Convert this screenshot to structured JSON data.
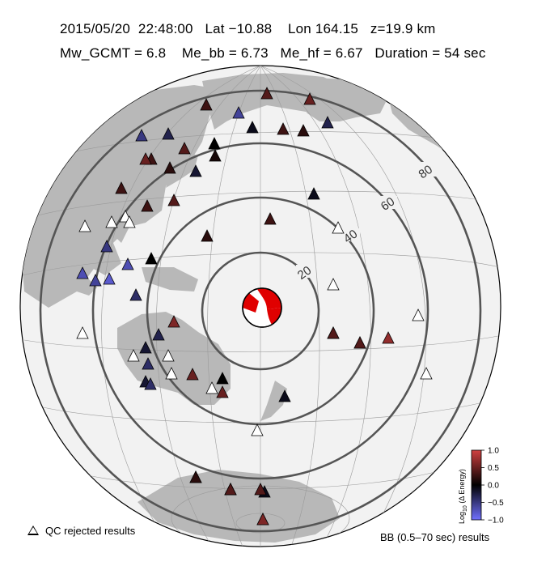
{
  "header": {
    "line1": "2015/05/20  22:48:00   Lat −10.88    Lon 164.15   z=19.9 km",
    "line2": "Mw_GCMT = 6.8    Me_bb = 6.73   Me_hf = 6.67   Duration = 54 sec"
  },
  "map": {
    "projection": "azimuthal-equidistant",
    "center": {
      "lat": -10.88,
      "lon": 164.15
    },
    "ring_distance_labels": [
      "20",
      "40",
      "60",
      "80"
    ],
    "colors": {
      "ocean": "#f2f2f2",
      "land": "#b8b8b8",
      "rings": "#555555",
      "graticule": "#9a9a9a"
    }
  },
  "beachball": {
    "colors": {
      "compressional": "#e00000",
      "dilatational": "#ffffff"
    }
  },
  "colorbar": {
    "title": "Log10 (Δ Energy)",
    "title_main": "Log",
    "title_sub": "10",
    "title_rest": " (Δ Energy)",
    "ticks": [
      "1.0",
      "0.5",
      "0.0",
      "−0.5",
      "−1.0"
    ],
    "tick_values": [
      1.0,
      0.5,
      0.0,
      -0.5,
      -1.0
    ],
    "range": [
      -1.0,
      1.0
    ],
    "colors": {
      "high": "#d04040",
      "mid": "#000000",
      "low": "#7070ff"
    }
  },
  "legend": {
    "qc_rejected": "QC rejected results",
    "bb_results": "BB (0.5–70 sec) results"
  },
  "stations": [
    {
      "value": 0.3
    },
    {
      "value": 0.4
    },
    {
      "value": 0.5
    },
    {
      "value": -0.5
    },
    {
      "value": 0.0
    },
    {
      "value": 0.4
    },
    {
      "value": 0.3
    },
    {
      "value": 0.2
    },
    {
      "value": -0.3
    },
    {
      "value": 0.3
    },
    {
      "value": 0.2
    },
    {
      "value": -0.2
    },
    {
      "value": 0.3
    },
    {
      "value": 0.4
    },
    {
      "value": 0.3
    },
    {
      "value": 0.2
    },
    {
      "value": -0.1
    },
    {
      "value": 0.3
    },
    {
      "value": 0.1
    },
    {
      "value": 0.5
    },
    {
      "value": 0.5
    },
    {
      "value": 0.0
    },
    {
      "value": -0.1
    },
    {
      "value": 0.5
    },
    {
      "value": -0.3
    },
    {
      "value": -0.1
    },
    {
      "value": -0.6
    },
    {
      "value": -0.5
    },
    {
      "value": -0.7
    },
    {
      "value": -0.6
    },
    {
      "value": -0.8
    },
    {
      "value": -0.7
    },
    {
      "value": -0.4
    },
    {
      "value": 0.0
    },
    {
      "value": 0.6
    },
    {
      "value": -0.3
    },
    {
      "value": -0.2
    },
    {
      "value": -0.4
    },
    {
      "value": -0.2
    },
    {
      "value": -0.4
    },
    {
      "value": 0.3
    },
    {
      "value": 0.4
    },
    {
      "value": 0.3
    },
    {
      "value": 0.3
    },
    {
      "value": -0.2
    },
    {
      "value": -0.1
    },
    {
      "value": 0.4
    },
    {
      "value": 0.3
    },
    {
      "value": 0.7
    },
    {
      "value": 0.4
    },
    {
      "value": 0.4
    },
    {
      "value": 0.4
    },
    {
      "value": 0.2
    },
    {
      "value": 0.6
    }
  ]
}
